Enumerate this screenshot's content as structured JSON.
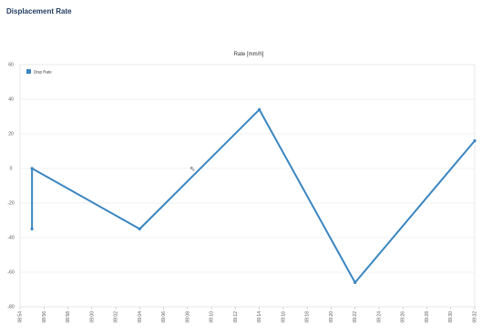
{
  "page": {
    "title": "Displacement Rate"
  },
  "icons": {
    "cursor": "mouse-pointer-icon"
  },
  "chart_data": {
    "type": "line",
    "title": "Rate [mm/h]",
    "xlabel": "",
    "ylabel": "",
    "ylim": [
      -80,
      60
    ],
    "yticks": [
      "60",
      "40",
      "20",
      "0",
      "-20",
      "-40",
      "-60",
      "-80"
    ],
    "xticks": [
      "08:54",
      "08:56",
      "08:58",
      "09:00",
      "09:02",
      "09:04",
      "09:06",
      "09:08",
      "09:10",
      "09:12",
      "09:14",
      "09:16",
      "09:18",
      "09:20",
      "09:22",
      "09:24",
      "09:26",
      "09:28",
      "09:30",
      "09:32"
    ],
    "grid": true,
    "legend": "top-left",
    "series": [
      {
        "name": "Disp Rate",
        "color": "#3a86c0",
        "points": [
          {
            "x": "08:55",
            "y": -35
          },
          {
            "x": "08:55",
            "y": 0
          },
          {
            "x": "09:04",
            "y": -35
          },
          {
            "x": "09:14",
            "y": 34
          },
          {
            "x": "09:22",
            "y": -66
          },
          {
            "x": "09:32",
            "y": 16
          }
        ]
      }
    ]
  }
}
